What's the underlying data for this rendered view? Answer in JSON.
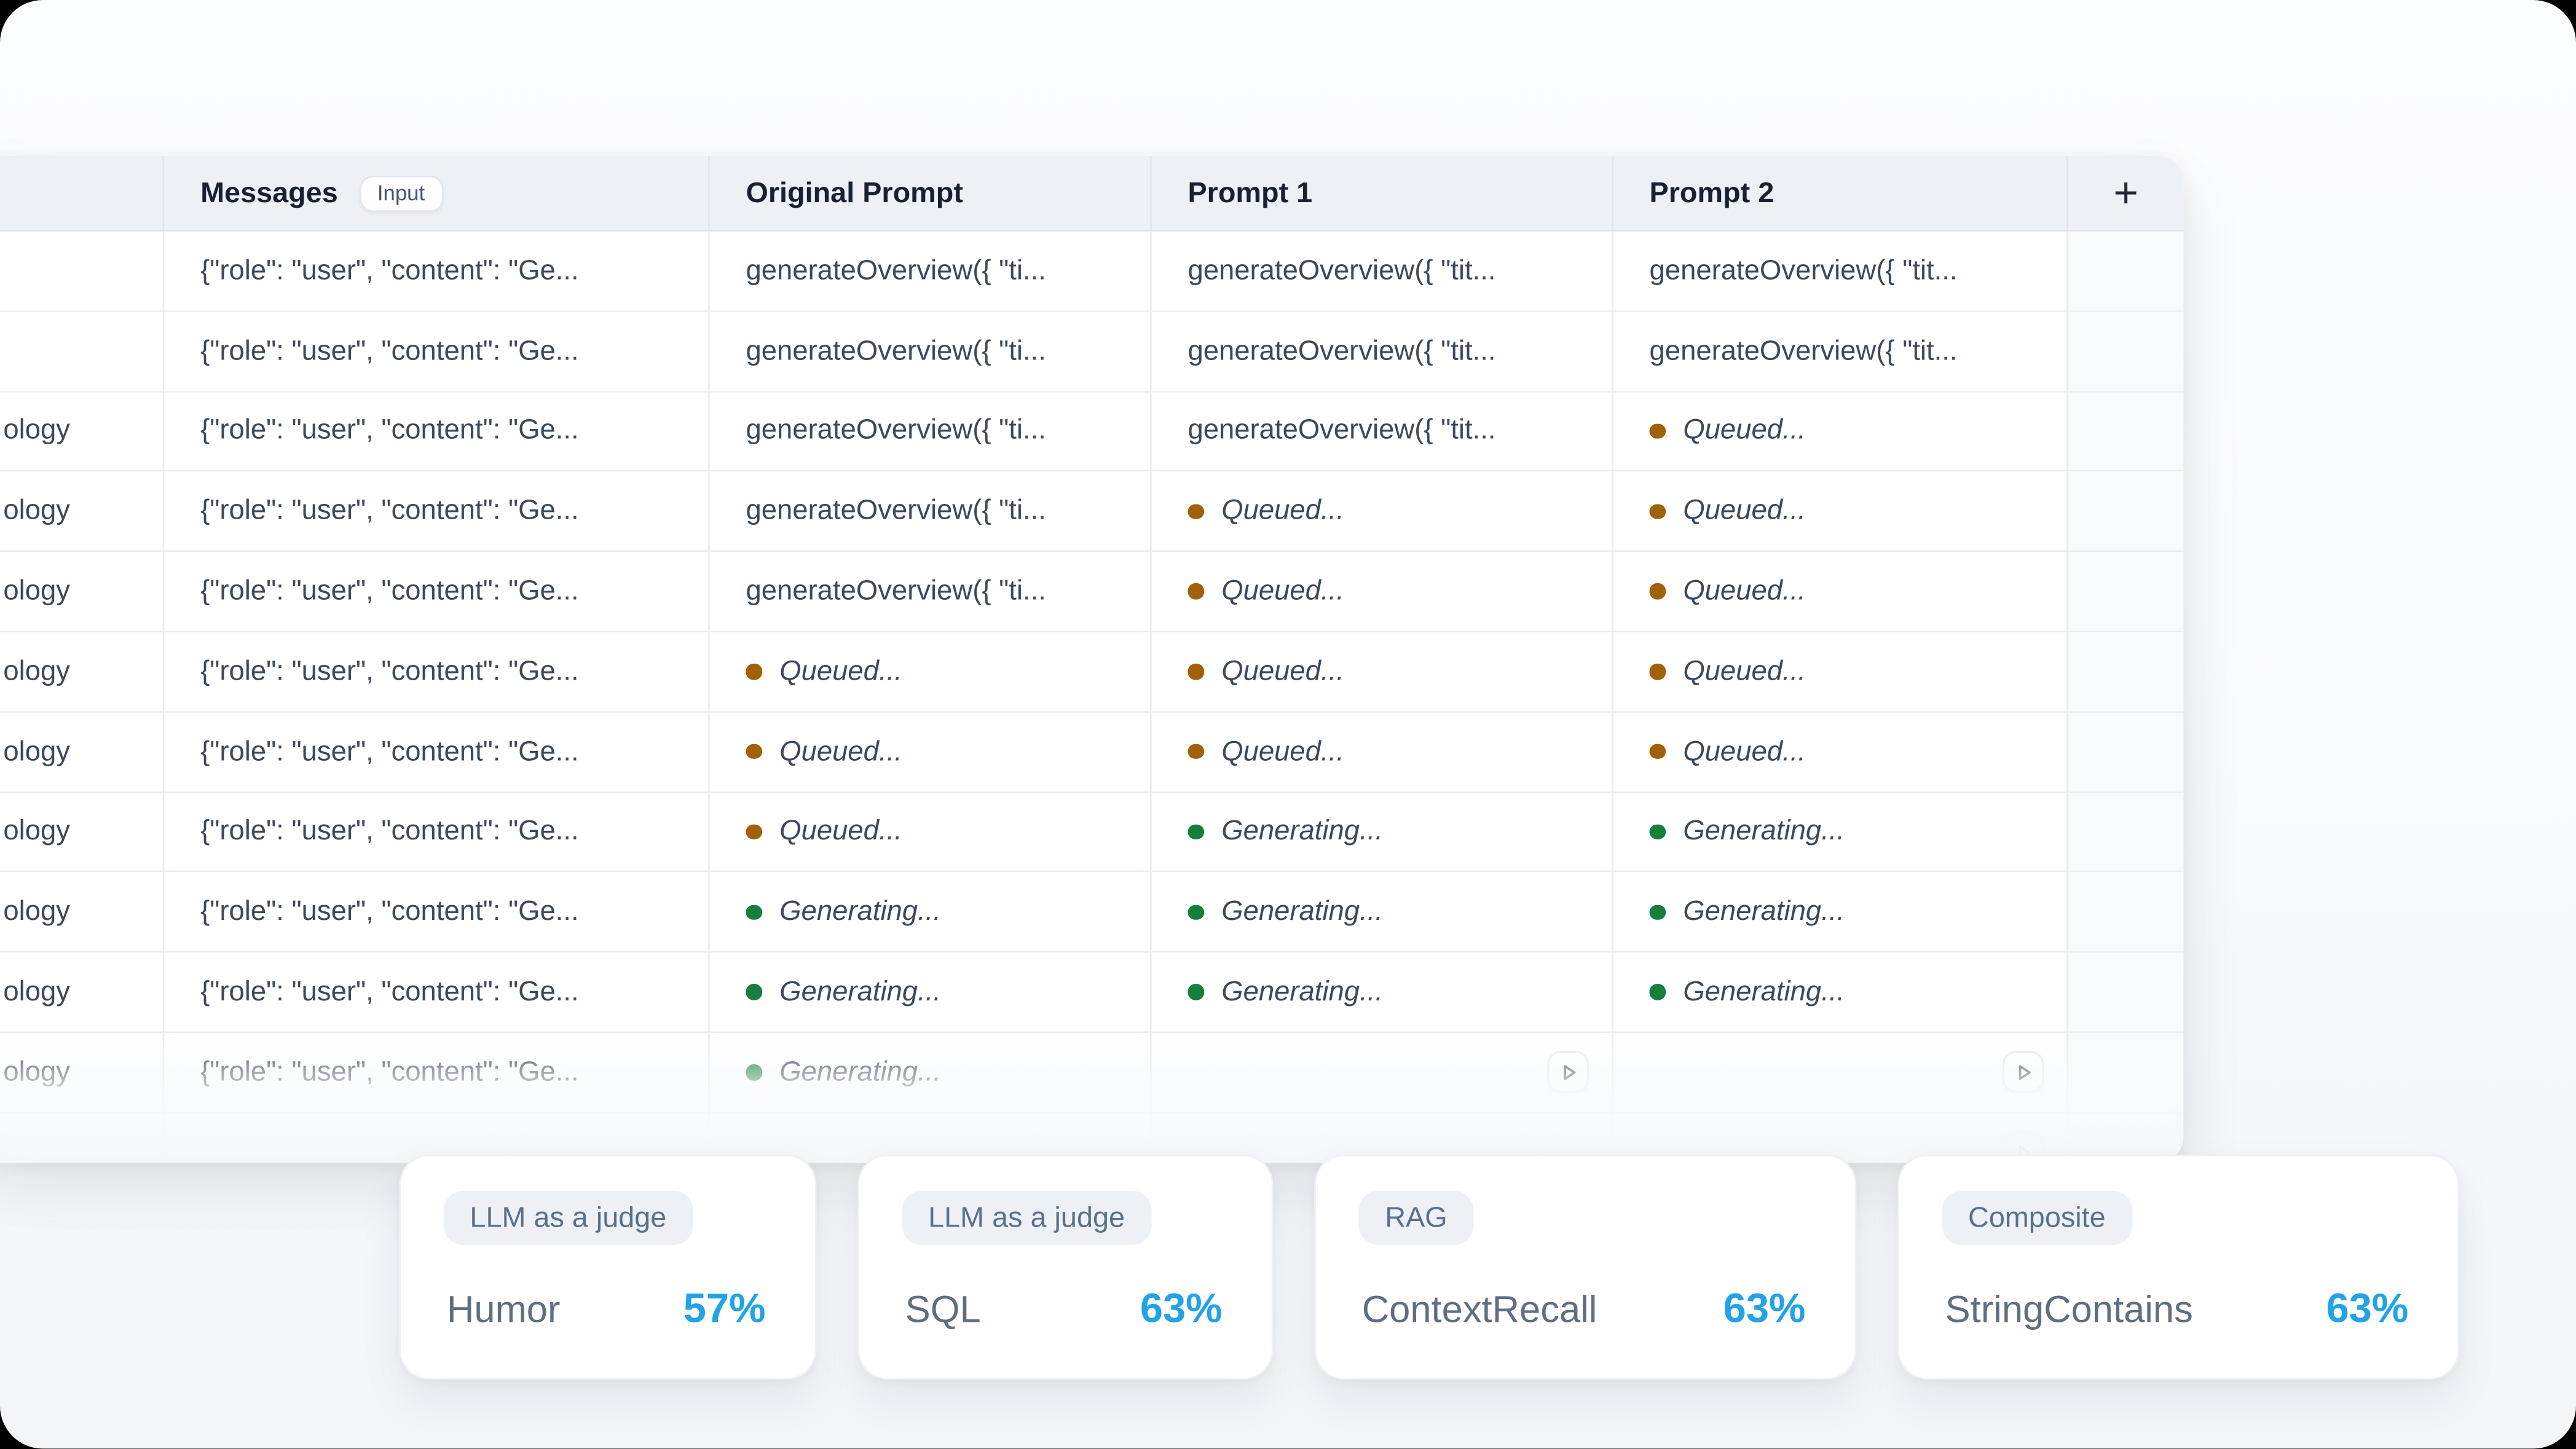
{
  "colors": {
    "accent_blue": "#21a3e8",
    "queued_dot": "#a16207",
    "generating_dot": "#15803d",
    "header_bg": "#edf0f5",
    "card_bg": "#ffffff",
    "page_bg": "#f6f8fb"
  },
  "table": {
    "header": {
      "row_label": "",
      "messages": {
        "label": "Messages",
        "badge": "Input"
      },
      "original_prompt": "Original Prompt",
      "prompt_1": "Prompt 1",
      "prompt_2": "Prompt 2",
      "add_column": "+"
    },
    "statuses": {
      "queued": "Queued...",
      "generating": "Generating..."
    },
    "rows": [
      {
        "label": "",
        "messages": "{\"role\": \"user\", \"content\": \"Ge...",
        "cells": [
          {
            "type": "prompt",
            "text": "generateOverview({ \"ti..."
          },
          {
            "type": "prompt",
            "text": "generateOverview({ \"tit..."
          },
          {
            "type": "prompt",
            "text": "generateOverview({ \"tit..."
          }
        ]
      },
      {
        "label": "",
        "messages": "{\"role\": \"user\", \"content\": \"Ge...",
        "cells": [
          {
            "type": "prompt",
            "text": "generateOverview({ \"ti..."
          },
          {
            "type": "prompt",
            "text": "generateOverview({ \"tit..."
          },
          {
            "type": "prompt",
            "text": "generateOverview({ \"tit..."
          }
        ]
      },
      {
        "label": "ology",
        "messages": "{\"role\": \"user\", \"content\": \"Ge...",
        "cells": [
          {
            "type": "prompt",
            "text": "generateOverview({ \"ti..."
          },
          {
            "type": "prompt",
            "text": "generateOverview({ \"tit..."
          },
          {
            "type": "queued"
          }
        ]
      },
      {
        "label": "ology",
        "messages": "{\"role\": \"user\", \"content\": \"Ge...",
        "cells": [
          {
            "type": "prompt",
            "text": "generateOverview({ \"ti..."
          },
          {
            "type": "queued"
          },
          {
            "type": "queued"
          }
        ]
      },
      {
        "label": "ology",
        "messages": "{\"role\": \"user\", \"content\": \"Ge...",
        "cells": [
          {
            "type": "prompt",
            "text": "generateOverview({ \"ti..."
          },
          {
            "type": "queued"
          },
          {
            "type": "queued"
          }
        ]
      },
      {
        "label": "ology",
        "messages": "{\"role\": \"user\", \"content\": \"Ge...",
        "cells": [
          {
            "type": "queued"
          },
          {
            "type": "queued"
          },
          {
            "type": "queued"
          }
        ]
      },
      {
        "label": "ology",
        "messages": "{\"role\": \"user\", \"content\": \"Ge...",
        "cells": [
          {
            "type": "queued"
          },
          {
            "type": "queued"
          },
          {
            "type": "queued"
          }
        ]
      },
      {
        "label": "ology",
        "messages": "{\"role\": \"user\", \"content\": \"Ge...",
        "cells": [
          {
            "type": "queued"
          },
          {
            "type": "generating"
          },
          {
            "type": "generating"
          }
        ]
      },
      {
        "label": "ology",
        "messages": "{\"role\": \"user\", \"content\": \"Ge...",
        "cells": [
          {
            "type": "generating"
          },
          {
            "type": "generating"
          },
          {
            "type": "generating"
          }
        ]
      },
      {
        "label": "ology",
        "messages": "{\"role\": \"user\", \"content\": \"Ge...",
        "cells": [
          {
            "type": "generating"
          },
          {
            "type": "generating"
          },
          {
            "type": "generating"
          }
        ]
      },
      {
        "label": "ology",
        "messages": "{\"role\": \"user\", \"content\": \"Ge...",
        "cells": [
          {
            "type": "generating"
          },
          {
            "type": "play"
          },
          {
            "type": "play"
          }
        ]
      },
      {
        "label": "",
        "messages": "",
        "cells": [
          {
            "type": "none"
          },
          {
            "type": "none"
          },
          {
            "type": "play"
          }
        ]
      }
    ]
  },
  "metrics": [
    {
      "category": "LLM as a judge",
      "name": "Humor",
      "value": "57%"
    },
    {
      "category": "LLM as a judge",
      "name": "SQL",
      "value": "63%"
    },
    {
      "category": "RAG",
      "name": "ContextRecall",
      "value": "63%"
    },
    {
      "category": "Composite",
      "name": "StringContains",
      "value": "63%"
    }
  ]
}
